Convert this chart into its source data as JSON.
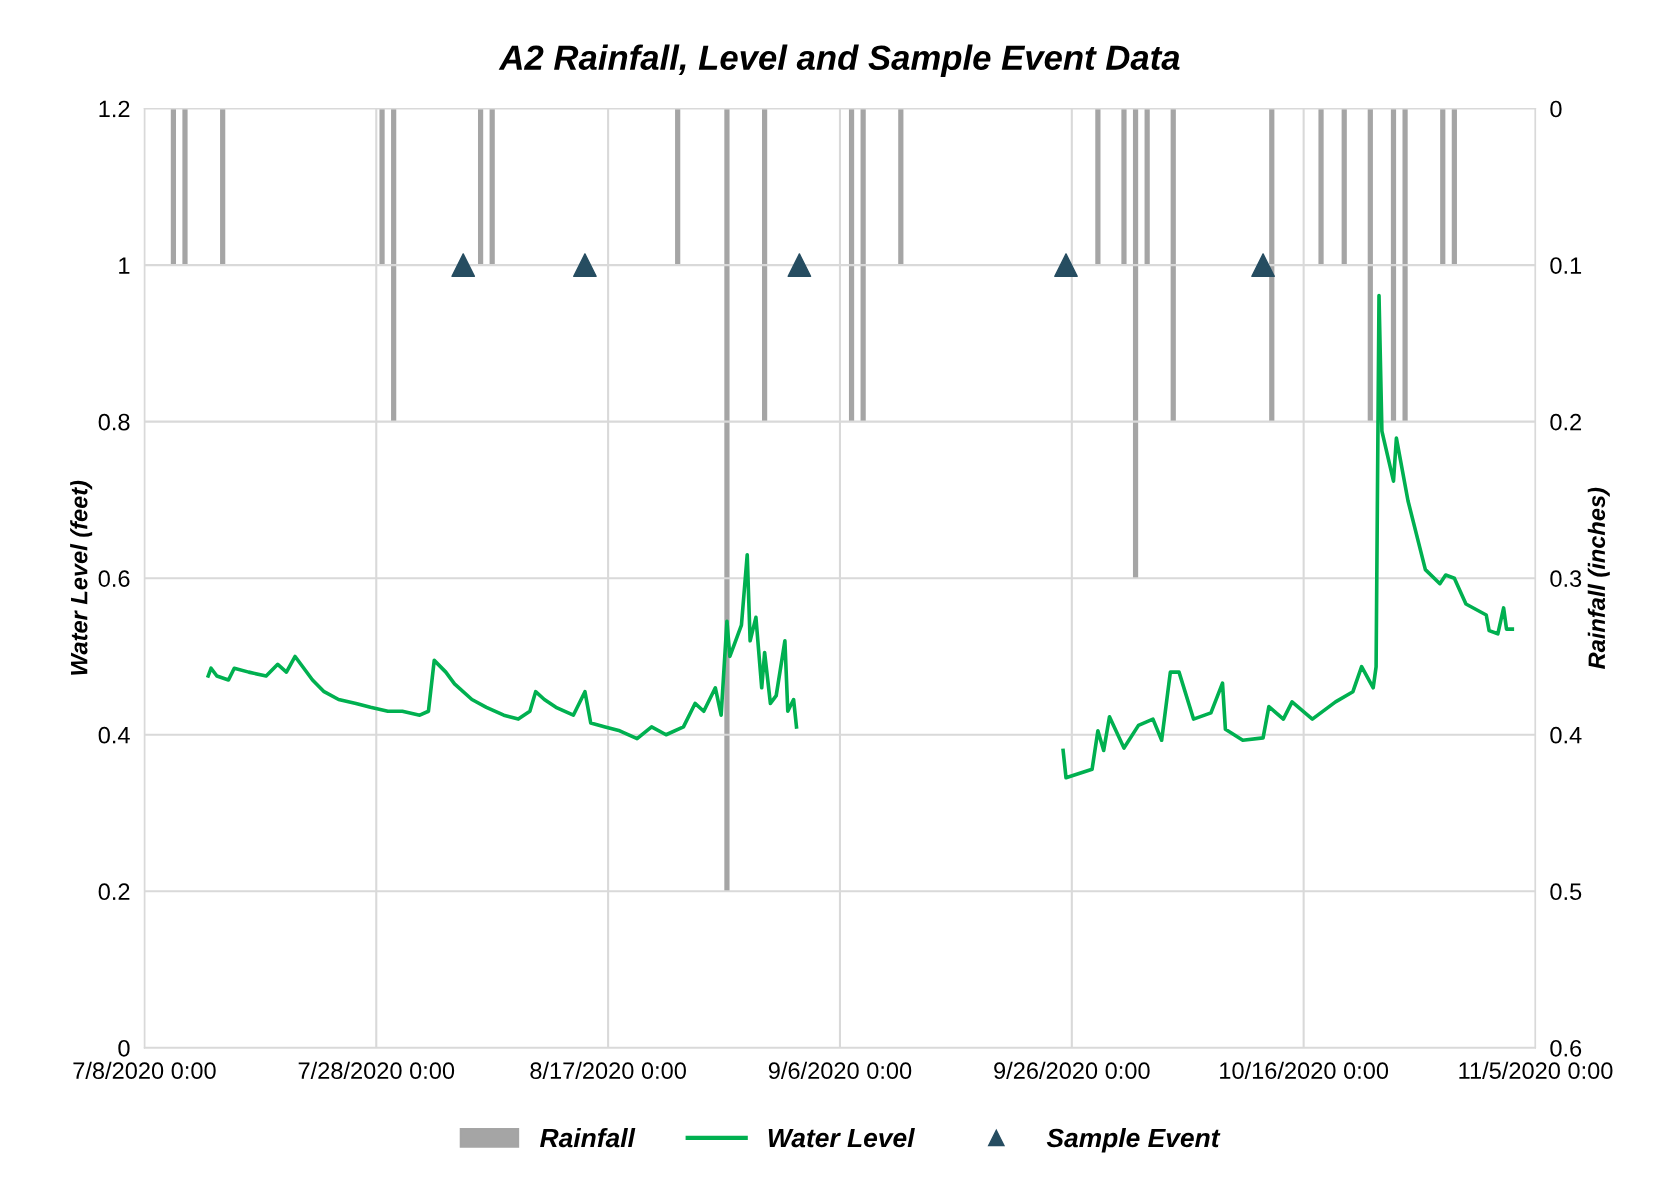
{
  "chart_data": {
    "type": "line",
    "title": "A2 Rainfall, Level and Sample Event Data",
    "ylabel": "Water Level (feet)",
    "y2label": "Rainfall (inches)",
    "xlim": [
      "2020-07-08",
      "2020-11-05"
    ],
    "xticks": [
      {
        "value": "2020-07-08",
        "label": "7/8/2020 0:00"
      },
      {
        "value": "2020-07-28",
        "label": "7/28/2020 0:00"
      },
      {
        "value": "2020-08-17",
        "label": "8/17/2020 0:00"
      },
      {
        "value": "2020-09-06",
        "label": "9/6/2020 0:00"
      },
      {
        "value": "2020-09-26",
        "label": "9/26/2020 0:00"
      },
      {
        "value": "2020-10-16",
        "label": "10/16/2020 0:00"
      },
      {
        "value": "2020-11-05",
        "label": "11/5/2020 0:00"
      }
    ],
    "ylim": [
      0,
      1.2
    ],
    "yticks": [
      0,
      0.2,
      0.4,
      0.6,
      0.8,
      1,
      1.2
    ],
    "y2lim": [
      0.6,
      0
    ],
    "y2ticks": [
      0,
      0.1,
      0.2,
      0.3,
      0.4,
      0.5,
      0.6
    ],
    "grid": true,
    "legend": "bottom",
    "series": [
      {
        "name": "Rainfall",
        "type": "bar",
        "axis": "y2",
        "color": "#a5a5a5",
        "x": [
          "2020-07-10T12:00",
          "2020-07-11T12:00",
          "2020-07-14T18:00",
          "2020-07-28T12:00",
          "2020-07-29T12:00",
          "2020-08-06T00:00",
          "2020-08-07T00:00",
          "2020-08-23T00:00",
          "2020-08-27T06:00",
          "2020-08-30T12:00",
          "2020-09-07T00:00",
          "2020-09-08T00:00",
          "2020-09-11T06:00",
          "2020-09-28T06:00",
          "2020-09-30T12:00",
          "2020-10-01T12:00",
          "2020-10-02T12:00",
          "2020-10-04T18:00",
          "2020-10-13T06:00",
          "2020-10-17T12:00",
          "2020-10-19T12:00",
          "2020-10-21T18:00",
          "2020-10-23T18:00",
          "2020-10-24T18:00",
          "2020-10-28T00:00",
          "2020-10-29T00:00"
        ],
        "values": [
          0.1,
          0.1,
          0.1,
          0.1,
          0.2,
          0.1,
          0.1,
          0.1,
          0.5,
          0.2,
          0.2,
          0.2,
          0.1,
          0.1,
          0.1,
          0.3,
          0.1,
          0.2,
          0.2,
          0.1,
          0.1,
          0.2,
          0.2,
          0.2,
          0.1,
          0.1
        ]
      },
      {
        "name": "Water Level",
        "color": "#00b050",
        "marker": "none",
        "line_style": "solid",
        "x": [
          "2020-07-13T12:00",
          "2020-07-13T18:00",
          "2020-07-14T06:00",
          "2020-07-15T06:00",
          "2020-07-15T18:00",
          "2020-07-17T00:00",
          "2020-07-18T12:00",
          "2020-07-19T12:00",
          "2020-07-20T06:00",
          "2020-07-21T00:00",
          "2020-07-21T18:00",
          "2020-07-22T12:00",
          "2020-07-23T12:00",
          "2020-07-24T18:00",
          "2020-07-26T06:00",
          "2020-07-27T12:00",
          "2020-07-29T00:00",
          "2020-07-30T06:00",
          "2020-07-31T18:00",
          "2020-08-01T12:00",
          "2020-08-02T00:00",
          "2020-08-03T00:00",
          "2020-08-03T18:00",
          "2020-08-05T06:00",
          "2020-08-06T12:00",
          "2020-08-08T00:00",
          "2020-08-09T06:00",
          "2020-08-10T06:00",
          "2020-08-10T18:00",
          "2020-08-11T12:00",
          "2020-08-12T12:00",
          "2020-08-14T00:00",
          "2020-08-15T00:00",
          "2020-08-15T12:00",
          "2020-08-16T18:00",
          "2020-08-18T00:00",
          "2020-08-19T12:00",
          "2020-08-20T18:00",
          "2020-08-22T00:00",
          "2020-08-23T12:00",
          "2020-08-24T12:00",
          "2020-08-25T06:00",
          "2020-08-26T06:00",
          "2020-08-26T18:00",
          "2020-08-27T06:00",
          "2020-08-27T12:00",
          "2020-08-28T00:00",
          "2020-08-28T12:00",
          "2020-08-29T00:00",
          "2020-08-29T06:00",
          "2020-08-29T18:00",
          "2020-08-30T06:00",
          "2020-08-30T12:00",
          "2020-08-31T00:00",
          "2020-08-31T12:00",
          "2020-09-01T06:00",
          "2020-09-01T12:00",
          "2020-09-02T00:00",
          "2020-09-02T06:00",
          "2020-09-14T00:00",
          "2020-09-25T06:00",
          "2020-09-25T12:00",
          "2020-09-27T18:00",
          "2020-09-28T06:00",
          "2020-09-28T18:00",
          "2020-09-29T06:00",
          "2020-09-30T12:00",
          "2020-10-01T18:00",
          "2020-10-03T00:00",
          "2020-10-03T18:00",
          "2020-10-04T12:00",
          "2020-10-05T06:00",
          "2020-10-06T12:00",
          "2020-10-08T00:00",
          "2020-10-09T00:00",
          "2020-10-09T06:00",
          "2020-10-10T18:00",
          "2020-10-12T12:00",
          "2020-10-13T00:00",
          "2020-10-14T06:00",
          "2020-10-15T00:00",
          "2020-10-16T18:00",
          "2020-10-18T18:00",
          "2020-10-20T06:00",
          "2020-10-21T00:00",
          "2020-10-22T00:00",
          "2020-10-22T06:00",
          "2020-10-22T12:00",
          "2020-10-22T18:00",
          "2020-10-23T18:00",
          "2020-10-24T00:00",
          "2020-10-25T00:00",
          "2020-10-26T12:00",
          "2020-10-27T18:00",
          "2020-10-28T06:00",
          "2020-10-29T00:00",
          "2020-10-30T00:00",
          "2020-10-31T18:00",
          "2020-11-01T00:00",
          "2020-11-01T18:00",
          "2020-11-02T06:00",
          "2020-11-02T12:00",
          "2020-11-03T00:00"
        ],
        "values": [
          0.475,
          0.485,
          0.475,
          0.47,
          0.485,
          0.48,
          0.475,
          0.49,
          0.48,
          0.5,
          0.485,
          0.47,
          0.455,
          0.445,
          0.44,
          0.435,
          0.43,
          0.43,
          0.425,
          0.43,
          0.495,
          0.48,
          0.465,
          0.445,
          0.435,
          0.425,
          0.42,
          0.43,
          0.455,
          0.445,
          0.435,
          0.425,
          0.455,
          0.415,
          0.41,
          0.405,
          0.395,
          0.41,
          0.4,
          0.41,
          0.44,
          0.43,
          0.46,
          0.425,
          0.545,
          0.5,
          0.52,
          0.54,
          0.63,
          0.52,
          0.55,
          0.46,
          0.505,
          0.44,
          0.45,
          0.52,
          0.43,
          0.445,
          0.41,
          null,
          0.38,
          0.345,
          0.356,
          0.405,
          0.38,
          0.423,
          0.383,
          0.412,
          0.42,
          0.393,
          0.48,
          0.48,
          0.42,
          0.428,
          0.466,
          0.407,
          0.393,
          0.396,
          0.436,
          0.42,
          0.442,
          0.42,
          0.442,
          0.455,
          0.487,
          0.46,
          0.487,
          0.961,
          0.788,
          0.724,
          0.779,
          0.699,
          0.611,
          0.593,
          0.604,
          0.6,
          0.567,
          0.553,
          0.533,
          0.529,
          0.562,
          0.535,
          0.535
        ]
      },
      {
        "name": "Sample Event",
        "type": "scatter",
        "color": "#264d61",
        "marker": "triangle",
        "x": [
          "2020-08-04T12:00",
          "2020-08-15T00:00",
          "2020-09-02T12:00",
          "2020-09-25T12:00",
          "2020-10-12T12:00"
        ],
        "values": [
          1,
          1,
          1,
          1,
          1
        ]
      }
    ]
  }
}
